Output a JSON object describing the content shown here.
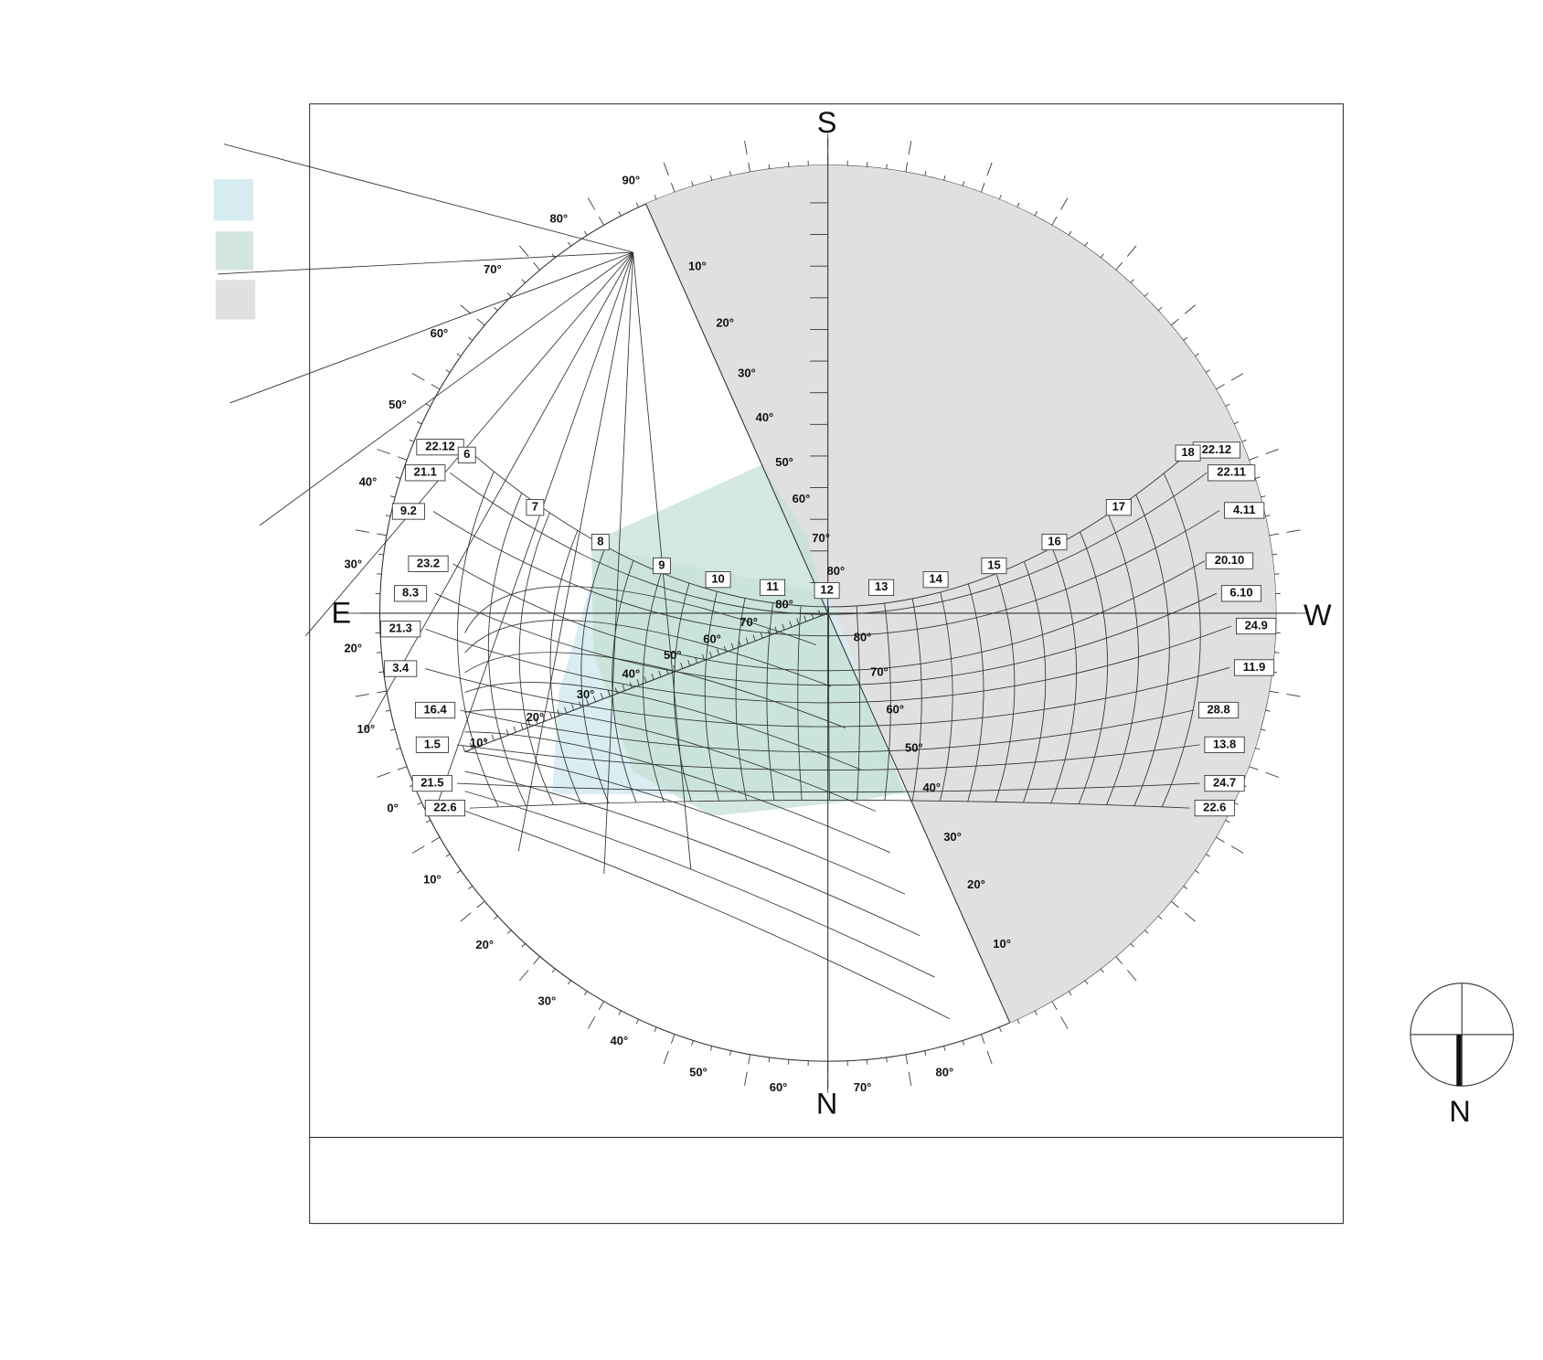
{
  "compass": {
    "south": "S",
    "north": "N",
    "east": "E",
    "west": "W"
  },
  "dates_left": [
    "22.12",
    "21.1",
    "9.2",
    "23.2",
    "8.3",
    "21.3",
    "3.4",
    "16.4",
    "1.5",
    "21.5",
    "22.6"
  ],
  "dates_right": [
    "22.12",
    "22.11",
    "4.11",
    "20.10",
    "6.10",
    "24.9",
    "11.9",
    "28.8",
    "13.8",
    "24.7",
    "22.6"
  ],
  "hours": [
    "6",
    "7",
    "8",
    "9",
    "10",
    "11",
    "12",
    "13",
    "14",
    "15",
    "16",
    "17",
    "18"
  ],
  "rim_left_angles": [
    "90°",
    "80°",
    "70°",
    "60°",
    "50°",
    "40°",
    "30°",
    "20°",
    "10°",
    "0°"
  ],
  "rim_bottom_angles": [
    "10°",
    "20°",
    "30°",
    "40°",
    "50°",
    "60°",
    "70°",
    "80°"
  ],
  "mask_upper_angles": [
    "10°",
    "20°",
    "30°",
    "40°",
    "50°",
    "60°",
    "70°",
    "80°"
  ],
  "mask_lower_angles": [
    "80°",
    "70°",
    "60°",
    "50°",
    "40°",
    "30°",
    "20°",
    "10°"
  ],
  "protractor_angles": [
    "10°",
    "20°",
    "30°",
    "40°",
    "50°",
    "60°",
    "70°",
    "80°"
  ],
  "north_arrow": "N"
}
